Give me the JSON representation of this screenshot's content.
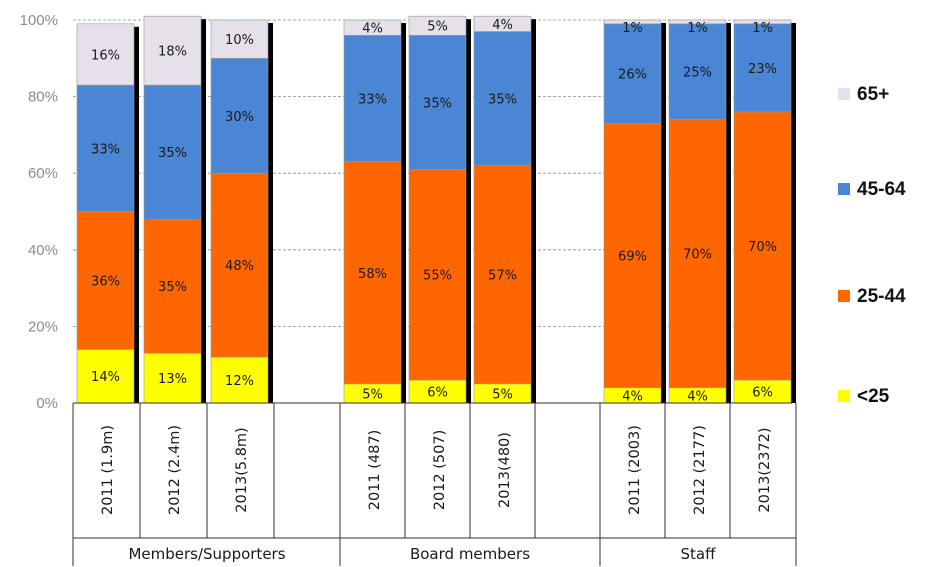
{
  "chart_data": {
    "type": "bar",
    "stacked": true,
    "percent": true,
    "ylim": [
      0,
      100
    ],
    "yticks": [
      "0%",
      "20%",
      "40%",
      "60%",
      "80%",
      "100%"
    ],
    "grid": true,
    "legend_position": "right",
    "groups": [
      {
        "name": "Members/Supporters",
        "categories": [
          "2011  (1.9m)",
          "2012  (2.4m)",
          "2013(5.8m)"
        ]
      },
      {
        "name": "Board members",
        "categories": [
          "2011  (487)",
          "2012  (507)",
          "2013(480)"
        ]
      },
      {
        "name": "Staff",
        "categories": [
          "2011  (2003)",
          "2012  (2177)",
          "2013(2372)"
        ]
      }
    ],
    "categories": [
      "2011  (1.9m)",
      "2012  (2.4m)",
      "2013(5.8m)",
      "2011  (487)",
      "2012  (507)",
      "2013(480)",
      "2011  (2003)",
      "2012  (2177)",
      "2013(2372)"
    ],
    "series": [
      {
        "name": "<25",
        "color": "#ffff00",
        "values": [
          14,
          13,
          12,
          5,
          6,
          5,
          4,
          4,
          6
        ],
        "labels": [
          "14%",
          "13%",
          "12%",
          "5%",
          "6%",
          "5%",
          "4%",
          "4%",
          "6%"
        ]
      },
      {
        "name": "25-44",
        "color": "#ff6600",
        "values": [
          36,
          35,
          48,
          58,
          55,
          57,
          69,
          70,
          70
        ],
        "labels": [
          "36%",
          "35%",
          "48%",
          "58%",
          "55%",
          "57%",
          "69%",
          "70%",
          "70%"
        ]
      },
      {
        "name": "45-64",
        "color": "#4a86d4",
        "values": [
          33,
          35,
          30,
          33,
          35,
          35,
          26,
          25,
          23
        ],
        "labels": [
          "33%",
          "35%",
          "30%",
          "33%",
          "35%",
          "35%",
          "26%",
          "25%",
          "23%"
        ]
      },
      {
        "name": "65+",
        "color": "#e6e0ea",
        "values": [
          16,
          18,
          10,
          4,
          5,
          4,
          1,
          1,
          1
        ],
        "labels": [
          "16%",
          "18%",
          "10%",
          "4%",
          "5%",
          "4%",
          "1%",
          "1%",
          "1%"
        ]
      }
    ]
  }
}
